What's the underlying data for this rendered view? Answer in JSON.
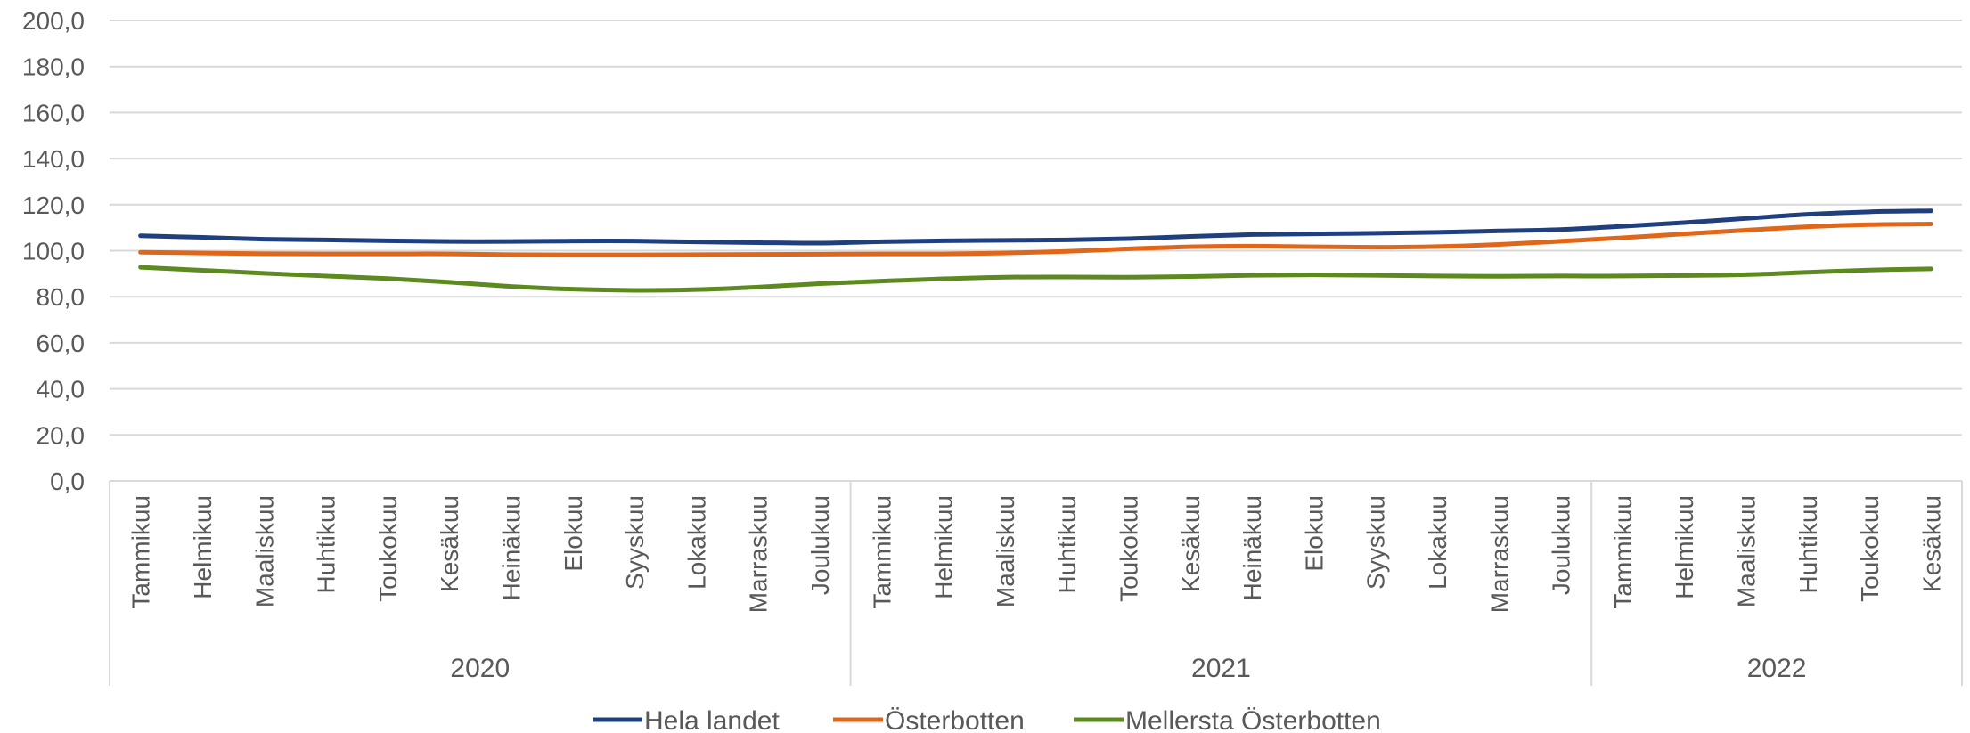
{
  "chart_data": {
    "type": "line",
    "title": "",
    "xlabel": "",
    "ylabel": "",
    "ylim": [
      0,
      200
    ],
    "ytick_step": 20,
    "ytick_labels": [
      "0,0",
      "20,0",
      "40,0",
      "60,0",
      "80,0",
      "100,0",
      "120,0",
      "140,0",
      "160,0",
      "180,0",
      "200,0"
    ],
    "grid": true,
    "legend_position": "bottom",
    "categories": [
      "Tammikuu",
      "Helmikuu",
      "Maaliskuu",
      "Huhtikuu",
      "Toukokuu",
      "Kesäkuu",
      "Heinäkuu",
      "Elokuu",
      "Syyskuu",
      "Lokakuu",
      "Marraskuu",
      "Joulukuu",
      "Tammikuu",
      "Helmikuu",
      "Maaliskuu",
      "Huhtikuu",
      "Toukokuu",
      "Kesäkuu",
      "Heinäkuu",
      "Elokuu",
      "Syyskuu",
      "Lokakuu",
      "Marraskuu",
      "Joulukuu",
      "Tammikuu",
      "Helmikuu",
      "Maaliskuu",
      "Huhtikuu",
      "Toukokuu",
      "Kesäkuu"
    ],
    "year_groups": [
      {
        "label": "2020",
        "start": 0,
        "count": 12
      },
      {
        "label": "2021",
        "start": 12,
        "count": 12
      },
      {
        "label": "2022",
        "start": 24,
        "count": 6
      }
    ],
    "series": [
      {
        "name": "Hela landet",
        "color": "#1f3f7f",
        "values": [
          106.5,
          105.8,
          105.0,
          104.7,
          104.3,
          104.0,
          104.0,
          104.2,
          104.2,
          103.8,
          103.5,
          103.3,
          103.9,
          104.3,
          104.5,
          104.7,
          105.2,
          106.2,
          107.0,
          107.3,
          107.6,
          108.0,
          108.6,
          109.2,
          110.6,
          112.2,
          114.0,
          115.8,
          116.9,
          117.3
        ]
      },
      {
        "name": "Österbotten",
        "color": "#e0661a",
        "values": [
          99.3,
          99.0,
          98.7,
          98.6,
          98.6,
          98.6,
          98.3,
          98.2,
          98.2,
          98.3,
          98.4,
          98.5,
          98.6,
          98.6,
          99.0,
          99.7,
          100.8,
          101.7,
          102.0,
          101.7,
          101.5,
          101.8,
          102.7,
          104.1,
          105.6,
          107.3,
          108.9,
          110.4,
          111.3,
          111.6
        ]
      },
      {
        "name": "Mellersta Österbotten",
        "color": "#5c8a1e",
        "values": [
          92.8,
          91.5,
          90.2,
          89.0,
          87.9,
          86.3,
          84.5,
          83.3,
          82.8,
          83.1,
          84.2,
          85.7,
          86.8,
          87.8,
          88.5,
          88.6,
          88.5,
          88.8,
          89.3,
          89.5,
          89.3,
          89.0,
          88.9,
          89.0,
          89.0,
          89.2,
          89.6,
          90.6,
          91.6,
          92.1
        ]
      }
    ]
  }
}
